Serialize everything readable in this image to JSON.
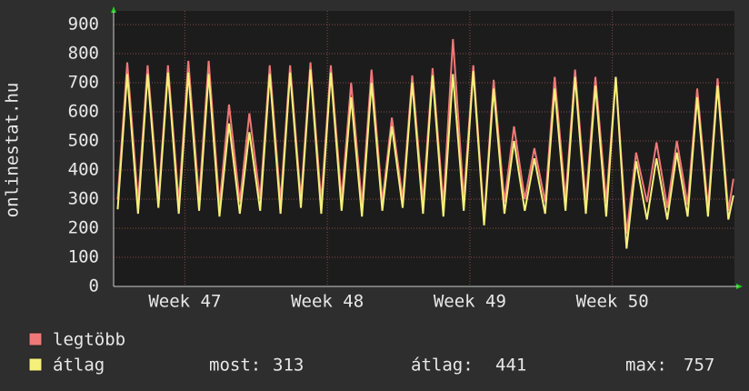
{
  "chart_data": {
    "type": "line",
    "y_label": "onlinestat.hu",
    "x": [
      0.2,
      0.67,
      1.2,
      1.67,
      2.2,
      2.67,
      3.2,
      3.67,
      4.2,
      4.67,
      5.2,
      5.67,
      6.2,
      6.67,
      7.2,
      7.67,
      8.2,
      8.67,
      9.2,
      9.67,
      10.2,
      10.67,
      11.2,
      11.67,
      12.2,
      12.67,
      13.2,
      13.67,
      14.2,
      14.67,
      15.2,
      15.67,
      16.2,
      16.67,
      17.2,
      17.67,
      18.2,
      18.67,
      19.2,
      19.67,
      20.2,
      20.67,
      21.2,
      21.67,
      22.2,
      22.67,
      23.2,
      23.67,
      24.2,
      24.67,
      25.2,
      25.67,
      26.2,
      26.67,
      27.2,
      27.67,
      28.2,
      28.67,
      29.2,
      29.67,
      30.2,
      30.45
    ],
    "xlim": [
      0,
      30.5
    ],
    "xticks": [
      {
        "value": 3.5,
        "label": "Week 47"
      },
      {
        "value": 10.5,
        "label": "Week 48"
      },
      {
        "value": 17.5,
        "label": "Week 49"
      },
      {
        "value": 24.5,
        "label": "Week 50"
      }
    ],
    "ylim": [
      0,
      900
    ],
    "yticks": [
      0,
      100,
      200,
      300,
      400,
      500,
      600,
      700,
      800,
      900
    ],
    "grid": true,
    "series": [
      {
        "name": "legtöbb",
        "color": "#f07878",
        "values": [
          300,
          770,
          290,
          760,
          300,
          760,
          290,
          775,
          300,
          775,
          280,
          625,
          290,
          595,
          300,
          760,
          290,
          760,
          300,
          770,
          290,
          760,
          300,
          700,
          280,
          745,
          290,
          580,
          300,
          725,
          290,
          750,
          280,
          850,
          300,
          760,
          230,
          710,
          290,
          550,
          300,
          475,
          290,
          720,
          300,
          745,
          290,
          720,
          290,
          720,
          180,
          460,
          290,
          495,
          270,
          500,
          280,
          680,
          270,
          715,
          260,
          370
        ]
      },
      {
        "name": "átlag",
        "color": "#f5f07a",
        "values": [
          265,
          730,
          250,
          730,
          270,
          735,
          250,
          735,
          260,
          730,
          240,
          560,
          250,
          530,
          260,
          730,
          250,
          735,
          270,
          745,
          250,
          735,
          260,
          650,
          240,
          700,
          260,
          550,
          270,
          700,
          250,
          725,
          240,
          730,
          260,
          740,
          210,
          680,
          250,
          500,
          260,
          440,
          250,
          680,
          260,
          720,
          250,
          690,
          240,
          720,
          130,
          430,
          230,
          440,
          230,
          460,
          240,
          650,
          240,
          690,
          230,
          313
        ]
      }
    ],
    "stats": [
      {
        "label": "most:",
        "value": 313
      },
      {
        "label": "átlag:",
        "value": 441
      },
      {
        "label": "max:",
        "value": 757
      }
    ]
  }
}
